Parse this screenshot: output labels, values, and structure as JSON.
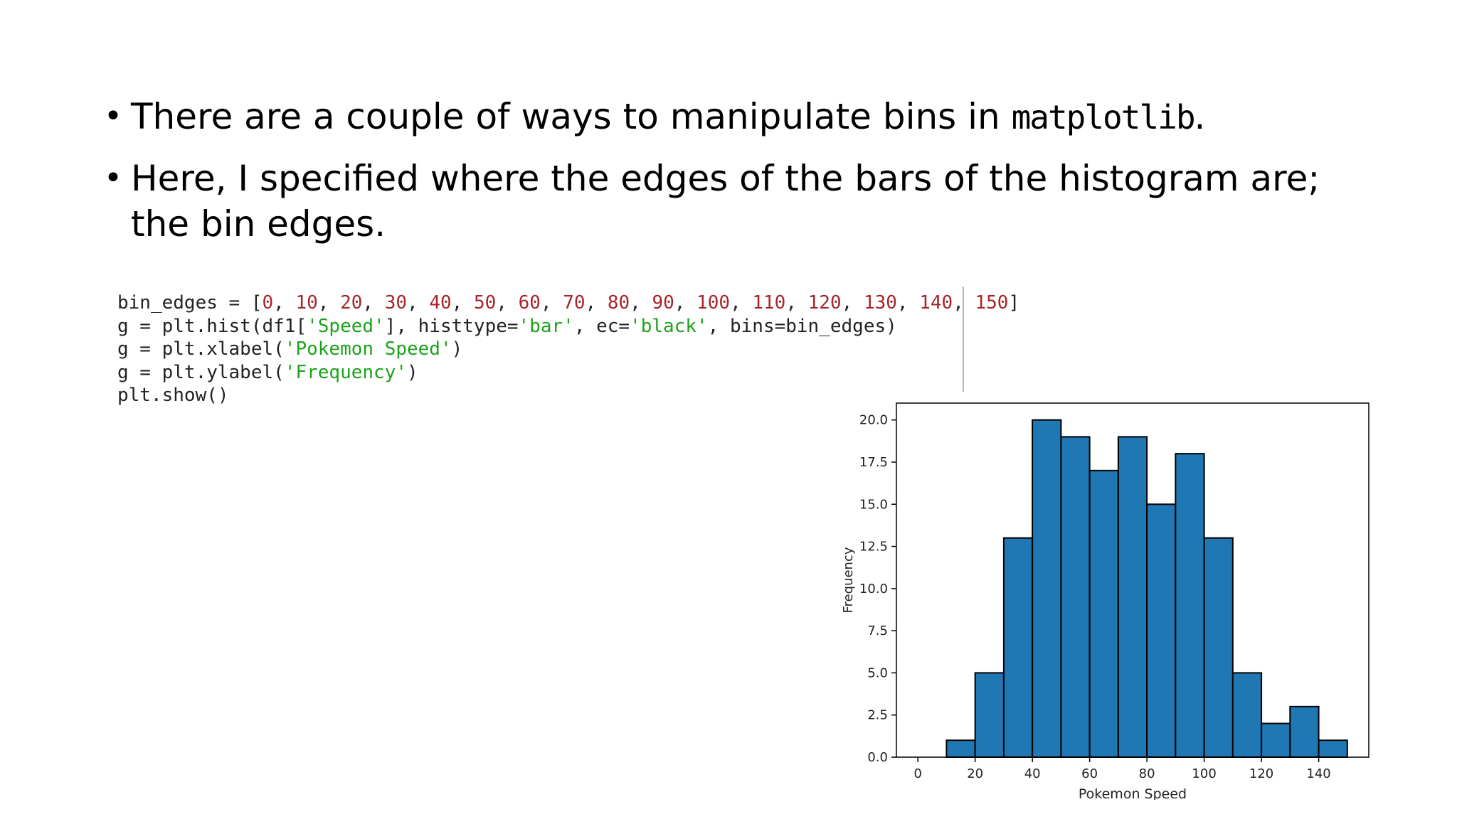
{
  "bullets": [
    {
      "before": "There are a couple of ways to manipulate bins in ",
      "mono": "matplotlib",
      "after": "."
    },
    {
      "before": "Here, I specified where the edges of the bars of the histogram are; the bin edges.",
      "mono": "",
      "after": ""
    }
  ],
  "code": [
    "bin_edges = [0, 10, 20, 30, 40, 50, 60, 70, 80, 90, 100, 110, 120, 130, 140, 150]",
    "g = plt.hist(df1['Speed'], histtype='bar', ec='black', bins=bin_edges)",
    "g = plt.xlabel('Pokemon Speed')",
    "g = plt.ylabel('Frequency')",
    "plt.show()"
  ],
  "colors": {
    "bar_fill": "#1f77b4",
    "bar_edge": "#000000",
    "code_number": "#a6262b",
    "code_string": "#1aa31a"
  },
  "chart_data": {
    "type": "bar",
    "bin_edges": [
      0,
      10,
      20,
      30,
      40,
      50,
      60,
      70,
      80,
      90,
      100,
      110,
      120,
      130,
      140,
      150
    ],
    "values": [
      0,
      1,
      5,
      13,
      20,
      19,
      17,
      19,
      15,
      18,
      13,
      5,
      2,
      3,
      1
    ],
    "xlabel": "Pokemon Speed",
    "ylabel": "Frequency",
    "xlim": [
      -7.5,
      157.5
    ],
    "ylim": [
      0,
      21
    ],
    "xticks": [
      0,
      20,
      40,
      60,
      80,
      100,
      120,
      140
    ],
    "yticks": [
      0.0,
      2.5,
      5.0,
      7.5,
      10.0,
      12.5,
      15.0,
      17.5,
      20.0
    ],
    "grid": false
  }
}
